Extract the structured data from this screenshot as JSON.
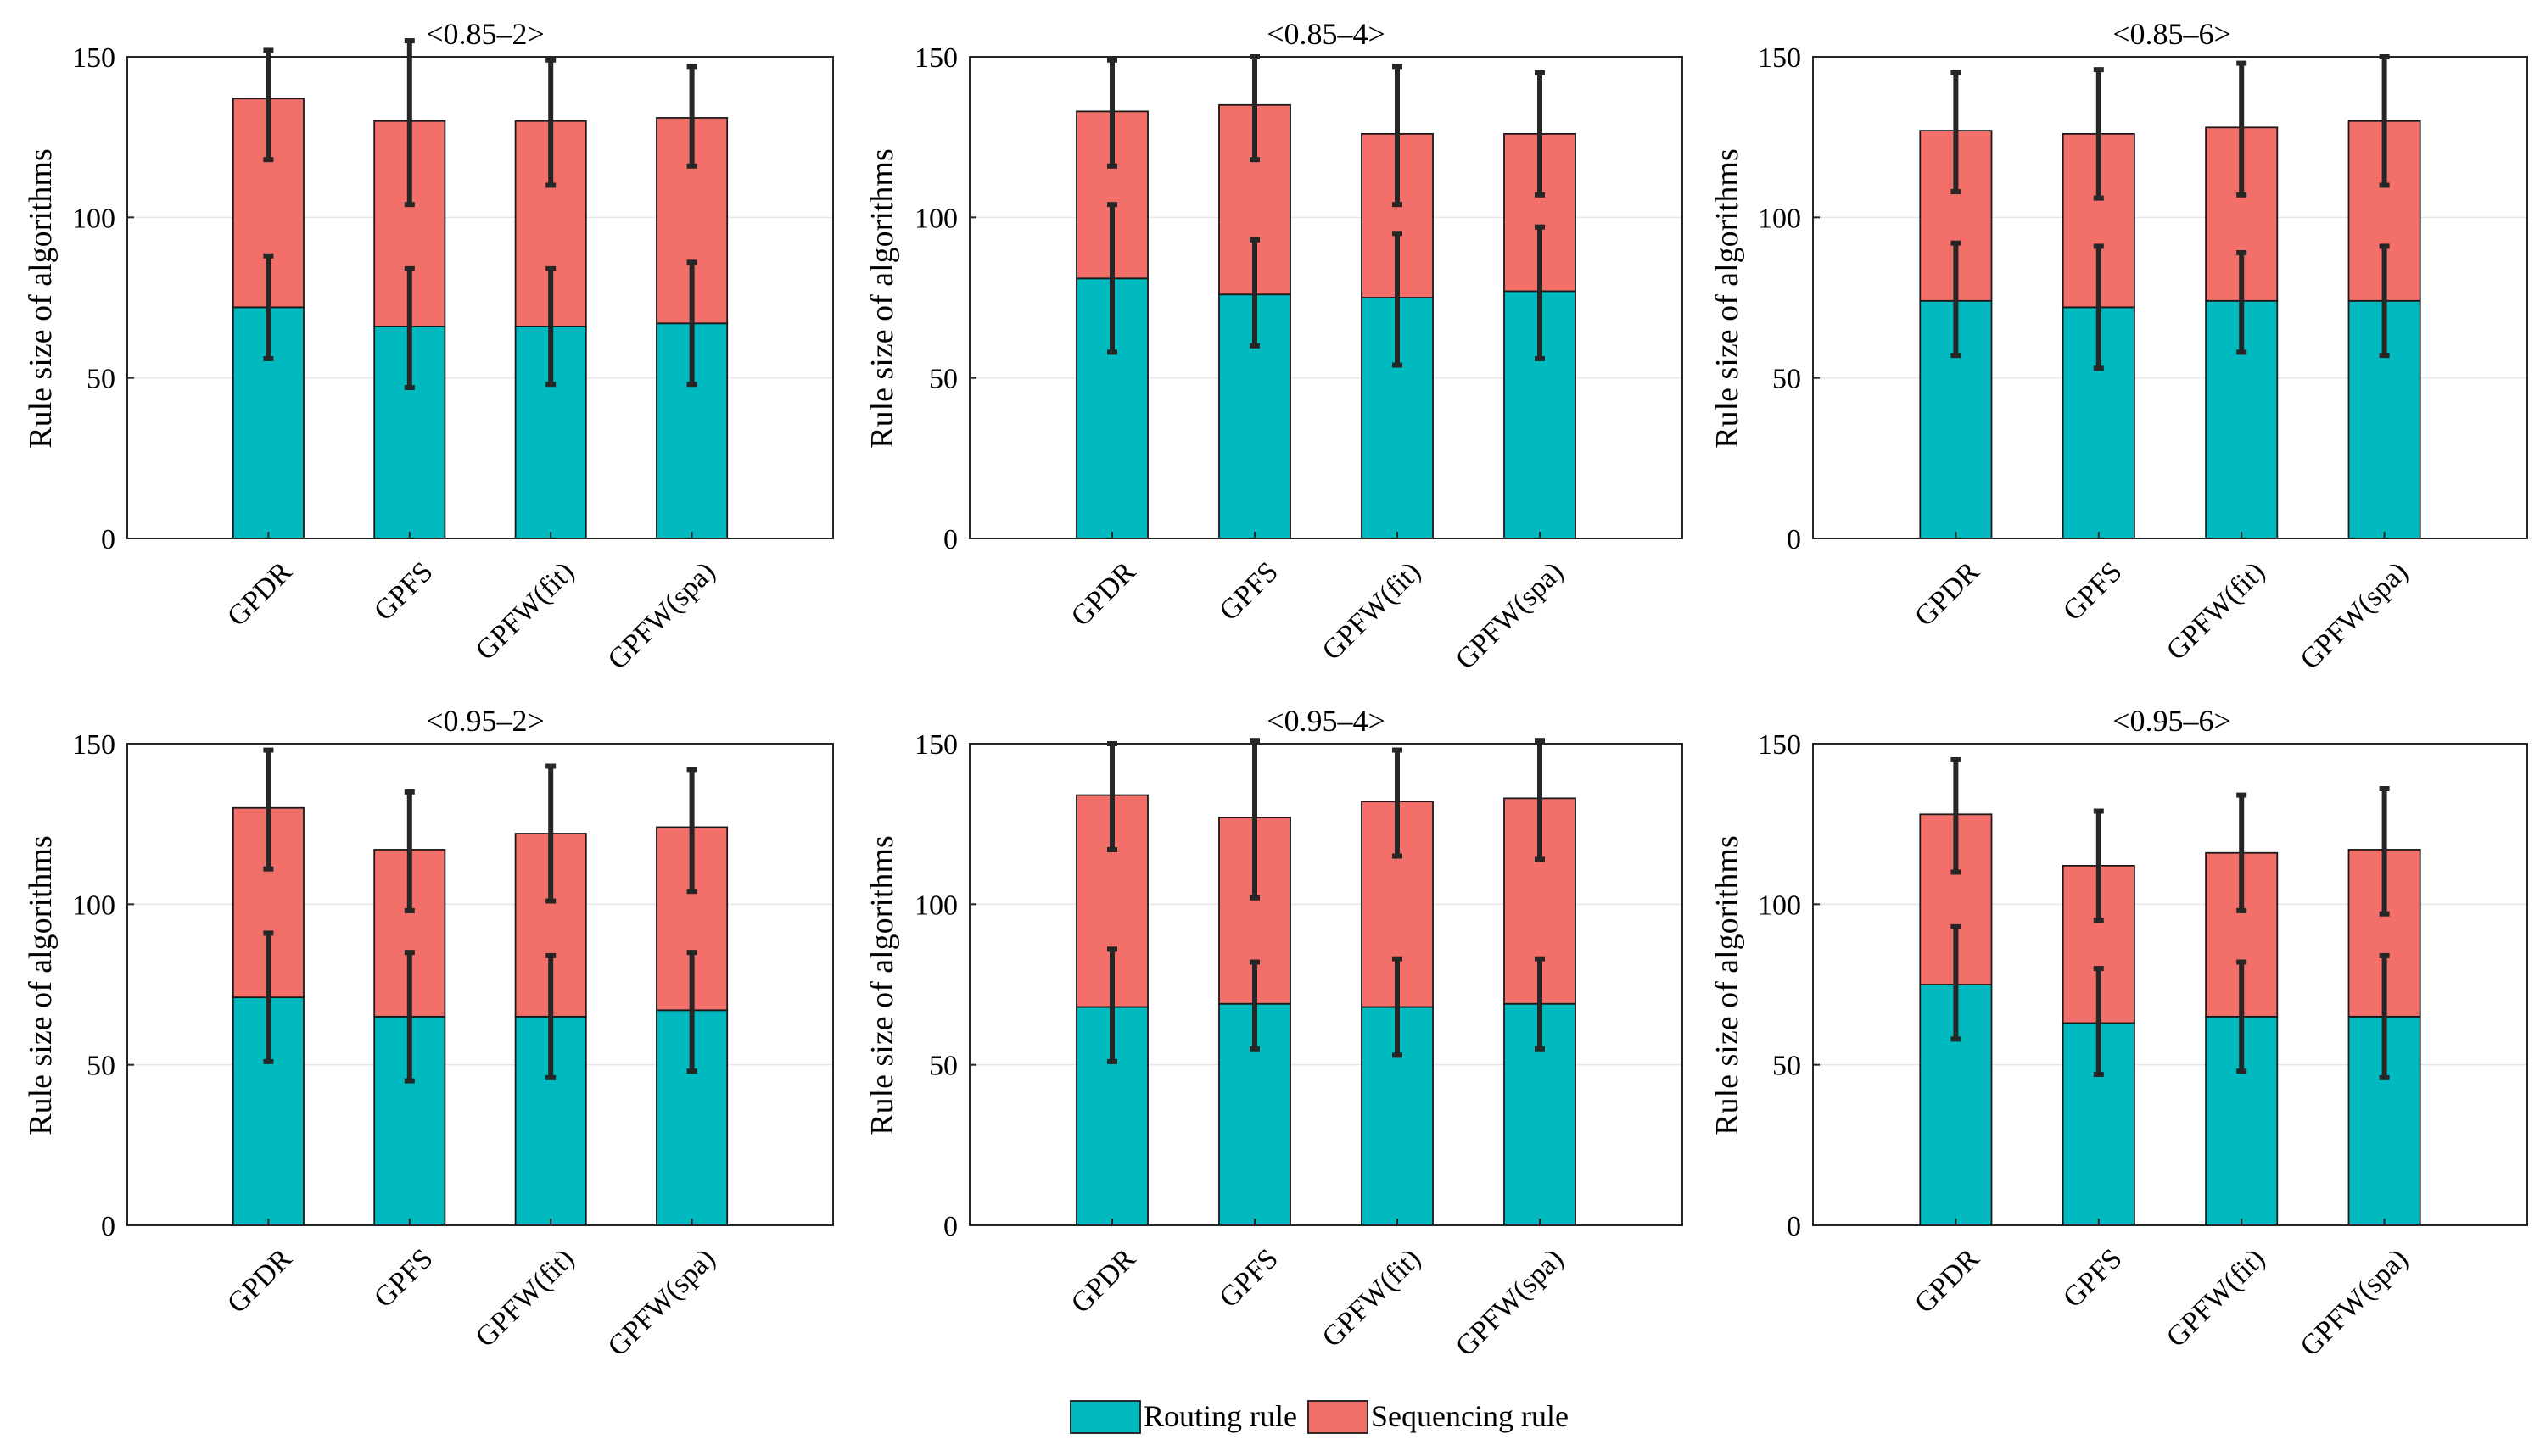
{
  "legend": [
    {
      "name": "Routing rule",
      "color": "#00BABF"
    },
    {
      "name": "Sequencing rule",
      "color": "#F36F6A"
    }
  ],
  "chart_data": [
    {
      "type": "bar",
      "stacked": true,
      "title": "<0.85–2>",
      "ylabel": "Rule size of algorithms",
      "ylim": [
        0,
        150
      ],
      "yticks": [
        0,
        50,
        100,
        150
      ],
      "categories": [
        "GPDR",
        "GPFS",
        "GPFW(fit)",
        "GPFW(spa)"
      ],
      "series": [
        {
          "name": "Routing rule",
          "values": [
            72,
            66,
            66,
            67
          ],
          "err_low": [
            56,
            47,
            48,
            48
          ],
          "err_high": [
            88,
            84,
            84,
            86
          ]
        },
        {
          "name": "Sequencing rule",
          "values": [
            65,
            64,
            64,
            64
          ],
          "err_low": [
            118,
            104,
            110,
            116
          ],
          "err_high": [
            152,
            155,
            149,
            147
          ]
        }
      ]
    },
    {
      "type": "bar",
      "stacked": true,
      "title": "<0.85–4>",
      "ylabel": "Rule size of algorithms",
      "ylim": [
        0,
        150
      ],
      "yticks": [
        0,
        50,
        100,
        150
      ],
      "categories": [
        "GPDR",
        "GPFS",
        "GPFW(fit)",
        "GPFW(spa)"
      ],
      "series": [
        {
          "name": "Routing rule",
          "values": [
            81,
            76,
            75,
            77
          ],
          "err_low": [
            58,
            60,
            54,
            56
          ],
          "err_high": [
            104,
            93,
            95,
            97
          ]
        },
        {
          "name": "Sequencing rule",
          "values": [
            52,
            59,
            51,
            49
          ],
          "err_low": [
            116,
            118,
            104,
            107
          ],
          "err_high": [
            149,
            150,
            147,
            145
          ]
        }
      ]
    },
    {
      "type": "bar",
      "stacked": true,
      "title": "<0.85–6>",
      "ylabel": "Rule size of algorithms",
      "ylim": [
        0,
        150
      ],
      "yticks": [
        0,
        50,
        100,
        150
      ],
      "categories": [
        "GPDR",
        "GPFS",
        "GPFW(fit)",
        "GPFW(spa)"
      ],
      "series": [
        {
          "name": "Routing rule",
          "values": [
            74,
            72,
            74,
            74
          ],
          "err_low": [
            57,
            53,
            58,
            57
          ],
          "err_high": [
            92,
            91,
            89,
            91
          ]
        },
        {
          "name": "Sequencing rule",
          "values": [
            53,
            54,
            54,
            56
          ],
          "err_low": [
            108,
            106,
            107,
            110
          ],
          "err_high": [
            145,
            146,
            148,
            150
          ]
        }
      ]
    },
    {
      "type": "bar",
      "stacked": true,
      "title": "<0.95–2>",
      "ylabel": "Rule size of algorithms",
      "ylim": [
        0,
        150
      ],
      "yticks": [
        0,
        50,
        100,
        150
      ],
      "categories": [
        "GPDR",
        "GPFS",
        "GPFW(fit)",
        "GPFW(spa)"
      ],
      "series": [
        {
          "name": "Routing rule",
          "values": [
            71,
            65,
            65,
            67
          ],
          "err_low": [
            51,
            45,
            46,
            48
          ],
          "err_high": [
            91,
            85,
            84,
            85
          ]
        },
        {
          "name": "Sequencing rule",
          "values": [
            59,
            52,
            57,
            57
          ],
          "err_low": [
            111,
            98,
            101,
            104
          ],
          "err_high": [
            148,
            135,
            143,
            142
          ]
        }
      ]
    },
    {
      "type": "bar",
      "stacked": true,
      "title": "<0.95–4>",
      "ylabel": "Rule size of algorithms",
      "ylim": [
        0,
        150
      ],
      "yticks": [
        0,
        50,
        100,
        150
      ],
      "categories": [
        "GPDR",
        "GPFS",
        "GPFW(fit)",
        "GPFW(spa)"
      ],
      "series": [
        {
          "name": "Routing rule",
          "values": [
            68,
            69,
            68,
            69
          ],
          "err_low": [
            51,
            55,
            53,
            55
          ],
          "err_high": [
            86,
            82,
            83,
            83
          ]
        },
        {
          "name": "Sequencing rule",
          "values": [
            66,
            58,
            64,
            64
          ],
          "err_low": [
            117,
            102,
            115,
            114
          ],
          "err_high": [
            150,
            151,
            148,
            151
          ]
        }
      ]
    },
    {
      "type": "bar",
      "stacked": true,
      "title": "<0.95–6>",
      "ylabel": "Rule size of algorithms",
      "ylim": [
        0,
        150
      ],
      "yticks": [
        0,
        50,
        100,
        150
      ],
      "categories": [
        "GPDR",
        "GPFS",
        "GPFW(fit)",
        "GPFW(spa)"
      ],
      "series": [
        {
          "name": "Routing rule",
          "values": [
            75,
            63,
            65,
            65
          ],
          "err_low": [
            58,
            47,
            48,
            46
          ],
          "err_high": [
            93,
            80,
            82,
            84
          ]
        },
        {
          "name": "Sequencing rule",
          "values": [
            53,
            49,
            51,
            52
          ],
          "err_low": [
            110,
            95,
            98,
            97
          ],
          "err_high": [
            145,
            129,
            134,
            136
          ]
        }
      ]
    }
  ]
}
